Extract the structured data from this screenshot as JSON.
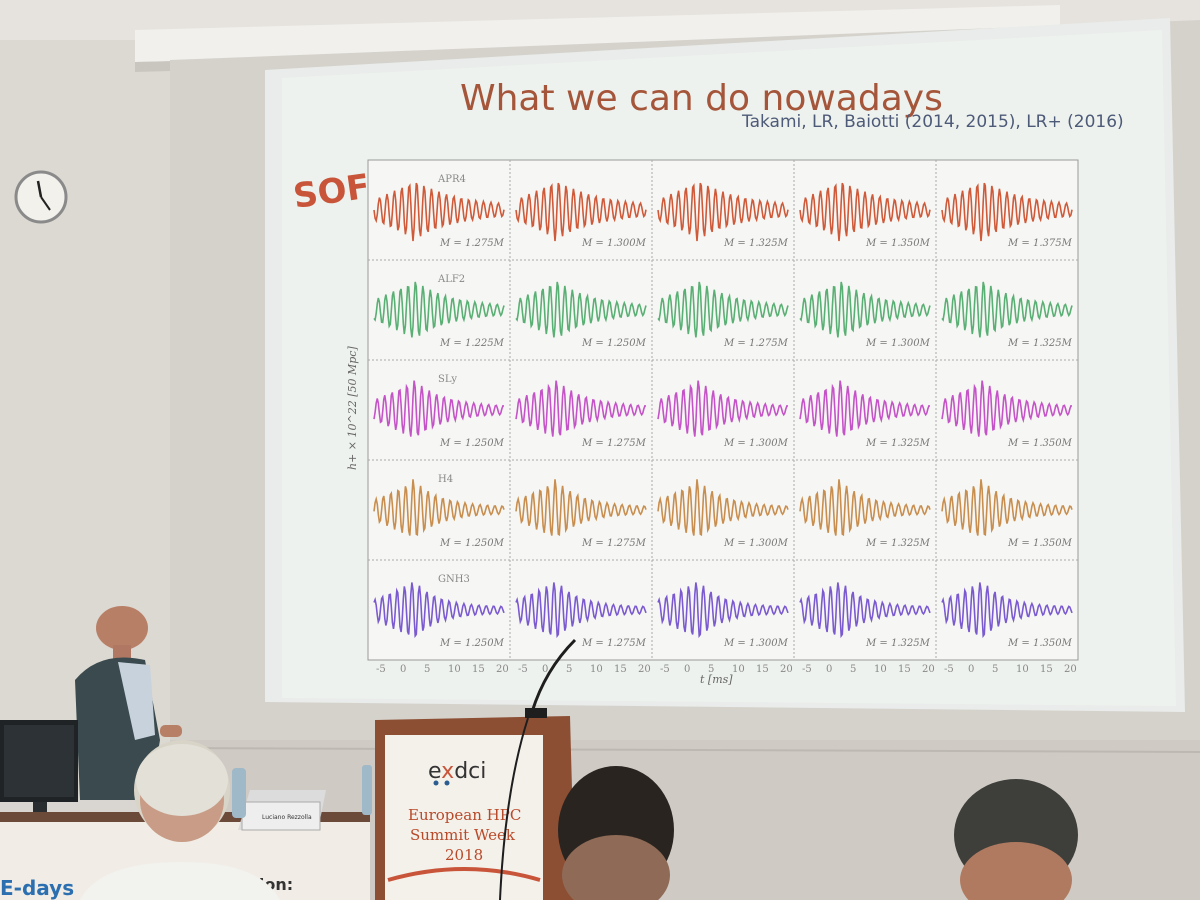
{
  "slide": {
    "title": "What we can do nowadays",
    "subtitle": "Takami, LR, Baiotti (2014, 2015), LR+ (2016)",
    "side_label": "SOFT",
    "y_axis_label": "h+ × 10^22 [50 Mpc]",
    "x_axis_label": "t [ms]",
    "x_ticks": [
      "-5",
      "0",
      "5",
      "10",
      "15",
      "20"
    ],
    "rows": [
      {
        "eos": "APR4",
        "color": "#cf5a3a",
        "masses": [
          "M = 1.275M",
          "M = 1.300M",
          "M = 1.325M",
          "M = 1.350M",
          "M = 1.375M"
        ]
      },
      {
        "eos": "ALF2",
        "color": "#5aaf74",
        "masses": [
          "M = 1.225M",
          "M = 1.250M",
          "M = 1.275M",
          "M = 1.300M",
          "M = 1.325M"
        ]
      },
      {
        "eos": "SLy",
        "color": "#c553c8",
        "masses": [
          "M = 1.250M",
          "M = 1.275M",
          "M = 1.300M",
          "M = 1.325M",
          "M = 1.350M"
        ]
      },
      {
        "eos": "H4",
        "color": "#c88e4f",
        "masses": [
          "M = 1.250M",
          "M = 1.275M",
          "M = 1.300M",
          "M = 1.325M",
          "M = 1.350M"
        ]
      },
      {
        "eos": "GNH3",
        "color": "#7b5ad0",
        "masses": [
          "M = 1.250M",
          "M = 1.275M",
          "M = 1.300M",
          "M = 1.325M",
          "M = 1.350M"
        ]
      }
    ]
  },
  "podium": {
    "logo_prefix": "e",
    "logo_x": "x",
    "logo_suffix": "dci",
    "lines": [
      "European HPC",
      "Summit Week",
      "2018"
    ]
  },
  "nameplate": "Luciano Rezzolla",
  "banner": {
    "logo": "E-days",
    "text": "vation:"
  }
}
